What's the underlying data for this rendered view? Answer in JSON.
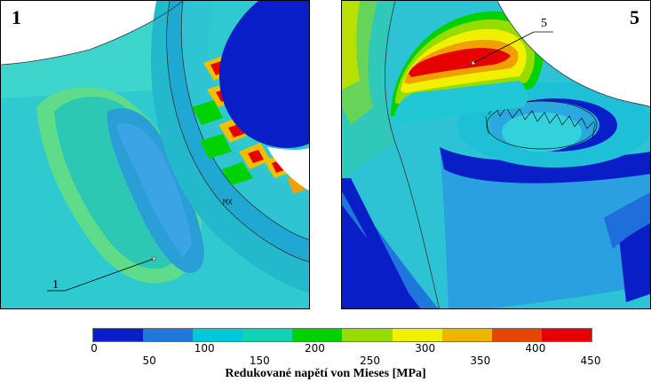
{
  "left_panel": {
    "number": "1",
    "callout": "1",
    "max_marker": "MX"
  },
  "right_panel": {
    "number": "5",
    "callout": "5"
  },
  "scale": {
    "title": "Redukované napětí von Mieses [MPa]",
    "colors": [
      "#0a1ec8",
      "#1e78dc",
      "#00c8dc",
      "#10d2b4",
      "#00d200",
      "#96dc00",
      "#f0f000",
      "#f0b400",
      "#e64600",
      "#e60000"
    ],
    "ticks": [
      "0",
      "50",
      "100",
      "150",
      "200",
      "250",
      "300",
      "350",
      "400",
      "450"
    ]
  }
}
